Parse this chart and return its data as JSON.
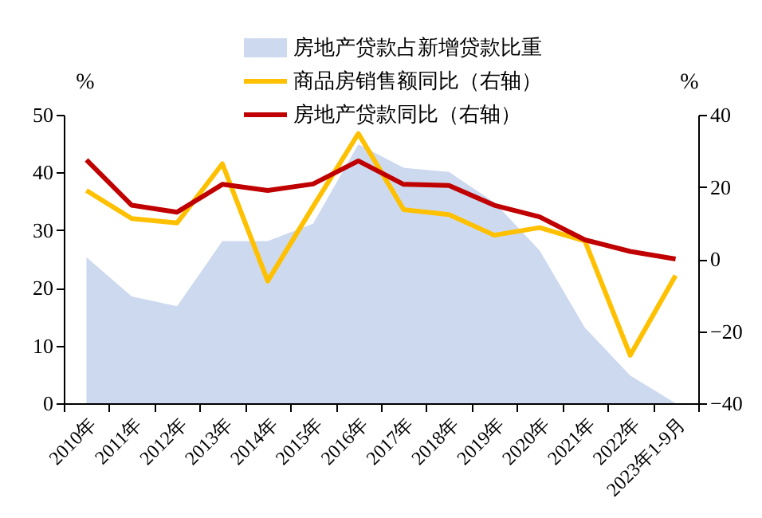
{
  "chart_data": {
    "type": "line",
    "categories": [
      "2010年",
      "2011年",
      "2012年",
      "2013年",
      "2014年",
      "2015年",
      "2016年",
      "2017年",
      "2018年",
      "2019年",
      "2020年",
      "2021年",
      "2022年",
      "2023年1-9月"
    ],
    "series": [
      {
        "name": "房地产贷款占新增贷款比重",
        "type": "area",
        "color": "#cdd9ef",
        "values": [
          25.3,
          18.5,
          16.8,
          28.1,
          28.1,
          31.1,
          44.9,
          40.8,
          40.1,
          34.8,
          26.5,
          13.1,
          4.8,
          0
        ]
      },
      {
        "name": "商品房销售额同比（右轴）",
        "axis": "y2",
        "color": "#ffc000",
        "values": [
          19.0,
          11.2,
          10.0,
          26.4,
          -6.1,
          14.5,
          34.8,
          13.7,
          12.3,
          6.6,
          8.7,
          5.0,
          -26.7,
          -4.6
        ]
      },
      {
        "name": "房地产贷款同比（右轴）",
        "axis": "y2",
        "color": "#c00000",
        "values": [
          27.5,
          14.9,
          13.0,
          20.7,
          19.0,
          20.8,
          27.2,
          20.7,
          20.4,
          14.9,
          11.7,
          5.3,
          2.1,
          0
        ]
      }
    ],
    "ylabel": "%",
    "y2label": "%",
    "ylim": [
      0,
      50
    ],
    "yticks": [
      0,
      10,
      20,
      30,
      40,
      50
    ],
    "y2lim": [
      -40,
      40
    ],
    "y2ticks": [
      -40,
      -20,
      0,
      20,
      40
    ],
    "legend": "top",
    "grid": false,
    "marker": "none",
    "line_style": "solid"
  }
}
